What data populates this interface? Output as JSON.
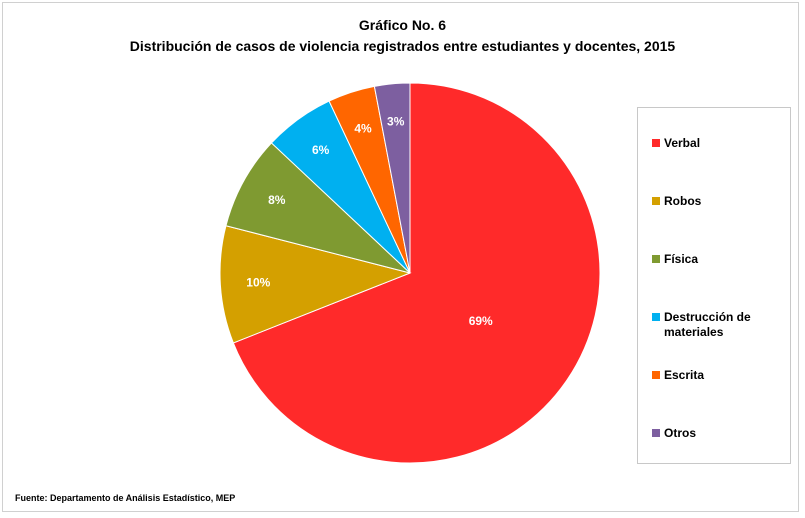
{
  "header": {
    "title_line1": "Gráfico No. 6",
    "title_line2": "Distribución de casos de violencia registrados entre estudiantes y docentes, 2015"
  },
  "source": "Fuente: Departamento de Análisis Estadístico, MEP",
  "chart_data": {
    "type": "pie",
    "title": "Gráfico No. 6",
    "subtitle": "Distribución de casos de violencia registrados entre estudiantes y docentes, 2015",
    "categories": [
      "Verbal",
      "Robos",
      "Física",
      "Destrucción de materiales",
      "Escrita",
      "Otros"
    ],
    "values": [
      69,
      10,
      8,
      6,
      4,
      3
    ],
    "labels": [
      "69%",
      "10%",
      "8%",
      "6%",
      "4%",
      "3%"
    ],
    "colors": [
      "#ff2a2a",
      "#d4a000",
      "#7f9a31",
      "#00b0f0",
      "#ff6600",
      "#7d5fa0"
    ],
    "start_angle_deg": 0,
    "direction": "clockwise",
    "legend": {
      "position": "right",
      "entries": [
        "Verbal",
        "Robos",
        "Física",
        "Destrucción de materiales",
        "Escrita",
        "Otros"
      ]
    }
  }
}
